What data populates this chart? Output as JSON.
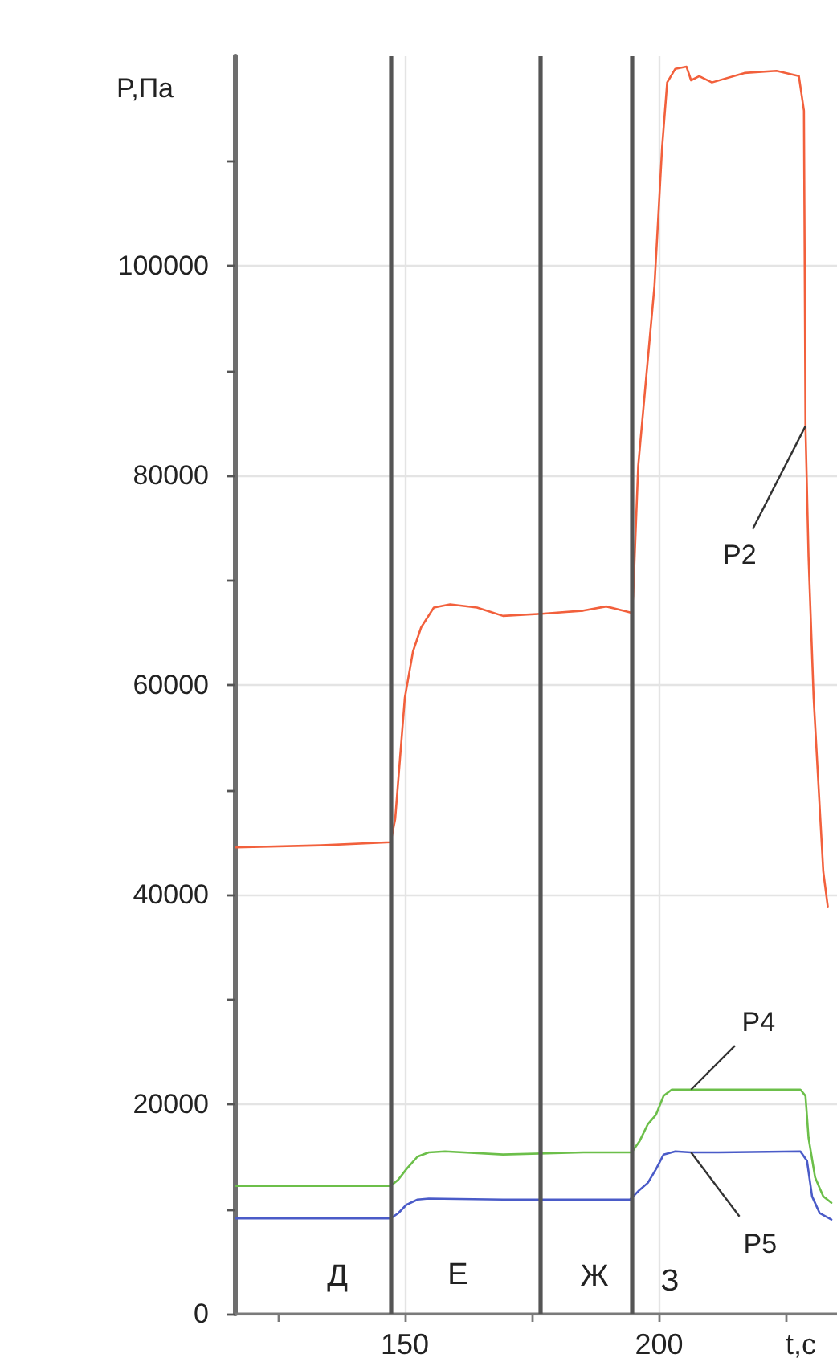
{
  "chart_data": {
    "type": "line",
    "xlabel": "t,с",
    "ylabel": "P,Па",
    "xlim": [
      116.5,
      235
    ],
    "ylim": [
      0,
      120000
    ],
    "xticks": [
      {
        "value": 125,
        "label": null
      },
      150,
      {
        "value": 175,
        "label": null
      },
      200,
      {
        "value": 225,
        "label": null
      }
    ],
    "yticks": [
      0,
      {
        "value": 10000,
        "label": null
      },
      20000,
      {
        "value": 30000,
        "label": null
      },
      40000,
      {
        "value": 50000,
        "label": null
      },
      60000,
      {
        "value": 70000,
        "label": null
      },
      80000,
      {
        "value": 90000,
        "label": null
      },
      100000,
      {
        "value": 110000,
        "label": null
      }
    ],
    "grid": true,
    "marker": "none",
    "line_style": "solid",
    "series": [
      {
        "name": "P2",
        "color": "#f2603c",
        "x": [
          116.8,
          133.5,
          147.2,
          148.1,
          150,
          151.6,
          153.2,
          155.7,
          158.9,
          164.2,
          169.3,
          176.9,
          185.1,
          189.6,
          194.6,
          194.9,
          195.9,
          199.1,
          200.6,
          201.6,
          203.2,
          205.4,
          206.3,
          207.9,
          210.4,
          216.8,
          223.1,
          227.5,
          228.5,
          228.8,
          229.4,
          230.4,
          232.3,
          233.2
        ],
        "values": [
          44500,
          44700,
          45000,
          47200,
          58800,
          63200,
          65500,
          67400,
          67700,
          67400,
          66600,
          66800,
          67100,
          67500,
          66900,
          68500,
          80900,
          98100,
          111300,
          117500,
          118800,
          119000,
          117700,
          118100,
          117500,
          118400,
          118600,
          118100,
          114800,
          84700,
          72300,
          58800,
          42200,
          38800
        ]
      },
      {
        "name": "P4",
        "color": "#6cbf4a",
        "x": [
          116.8,
          147.2,
          148.7,
          150.3,
          152.5,
          154.7,
          157.9,
          169.3,
          185.1,
          194.6,
          196.2,
          197.8,
          199.4,
          200.9,
          202.5,
          206.3,
          216.8,
          227.8,
          228.8,
          229.4,
          230.7,
          232.3,
          233.9
        ],
        "values": [
          12200,
          12200,
          12800,
          13800,
          15000,
          15400,
          15500,
          15200,
          15400,
          15400,
          16500,
          18100,
          19000,
          20800,
          21400,
          21400,
          21400,
          21400,
          20800,
          16800,
          13000,
          11200,
          10600
        ]
      },
      {
        "name": "P5",
        "color": "#4a5bc8",
        "x": [
          116.8,
          147.2,
          148.7,
          150.3,
          152.5,
          154.7,
          169.3,
          185.1,
          194.3,
          195.9,
          197.8,
          199.4,
          200.9,
          203.2,
          206.3,
          211.7,
          227.8,
          229.1,
          230.1,
          231.6,
          233.9
        ],
        "values": [
          9100,
          9100,
          9600,
          10400,
          10900,
          11000,
          10900,
          10900,
          10900,
          11700,
          12500,
          13800,
          15200,
          15500,
          15400,
          15400,
          15500,
          14600,
          11200,
          9600,
          9000
        ]
      }
    ],
    "ref_lines": [
      {
        "axis": "x",
        "value": 147.3,
        "color": "#555555"
      },
      {
        "axis": "x",
        "value": 176.5,
        "color": "#555555"
      },
      {
        "axis": "x",
        "value": 194.7,
        "color": "#555555"
      }
    ],
    "annotations": [
      "Д",
      "Е",
      "Ж",
      "З"
    ]
  }
}
